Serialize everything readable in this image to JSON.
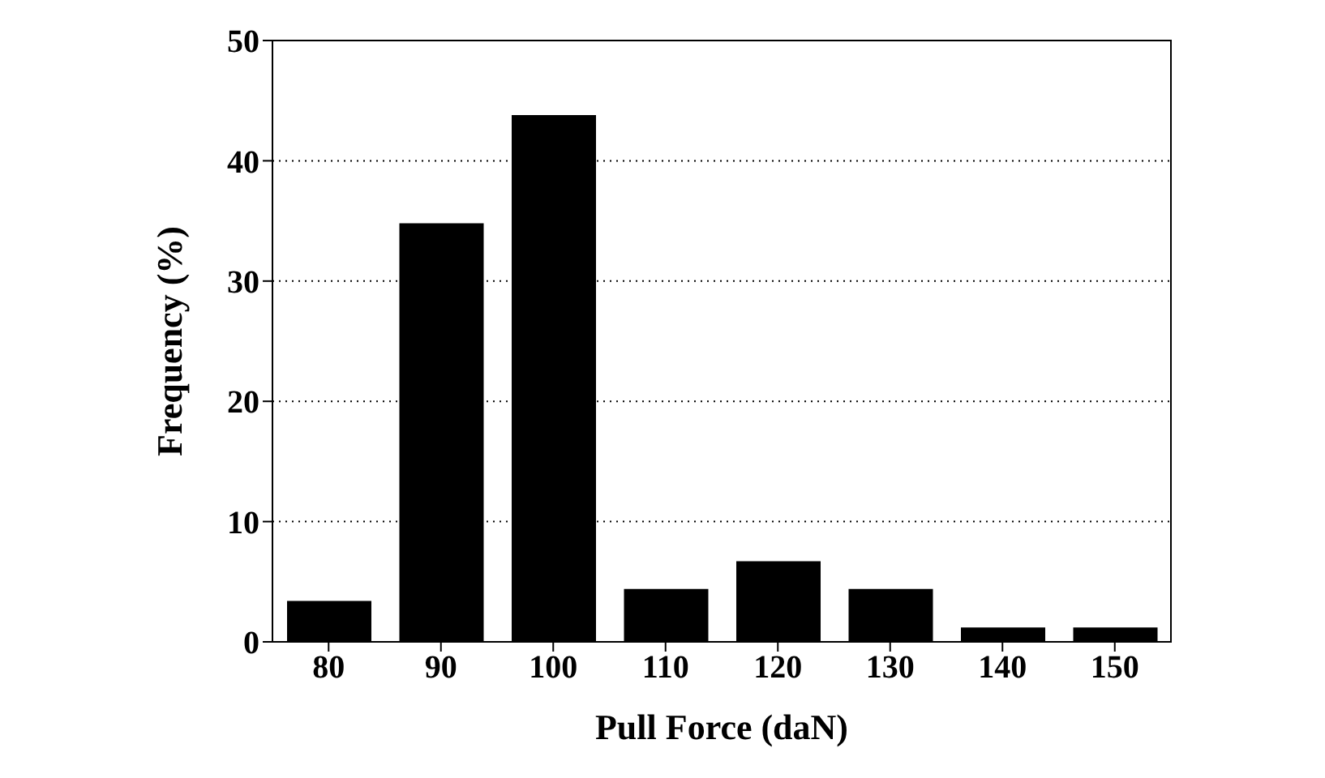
{
  "chart_data": {
    "type": "bar",
    "xlabel": "Pull Force (daN)",
    "ylabel": "Frequency (%)",
    "categories": [
      "80",
      "90",
      "100",
      "110",
      "120",
      "130",
      "140",
      "150"
    ],
    "values": [
      3.4,
      34.8,
      43.8,
      4.4,
      6.7,
      4.4,
      1.2,
      1.2
    ],
    "color": "#000000",
    "ylim": [
      0,
      50
    ],
    "yticks": [
      0,
      10,
      20,
      30,
      40,
      50
    ],
    "grid": "y"
  }
}
